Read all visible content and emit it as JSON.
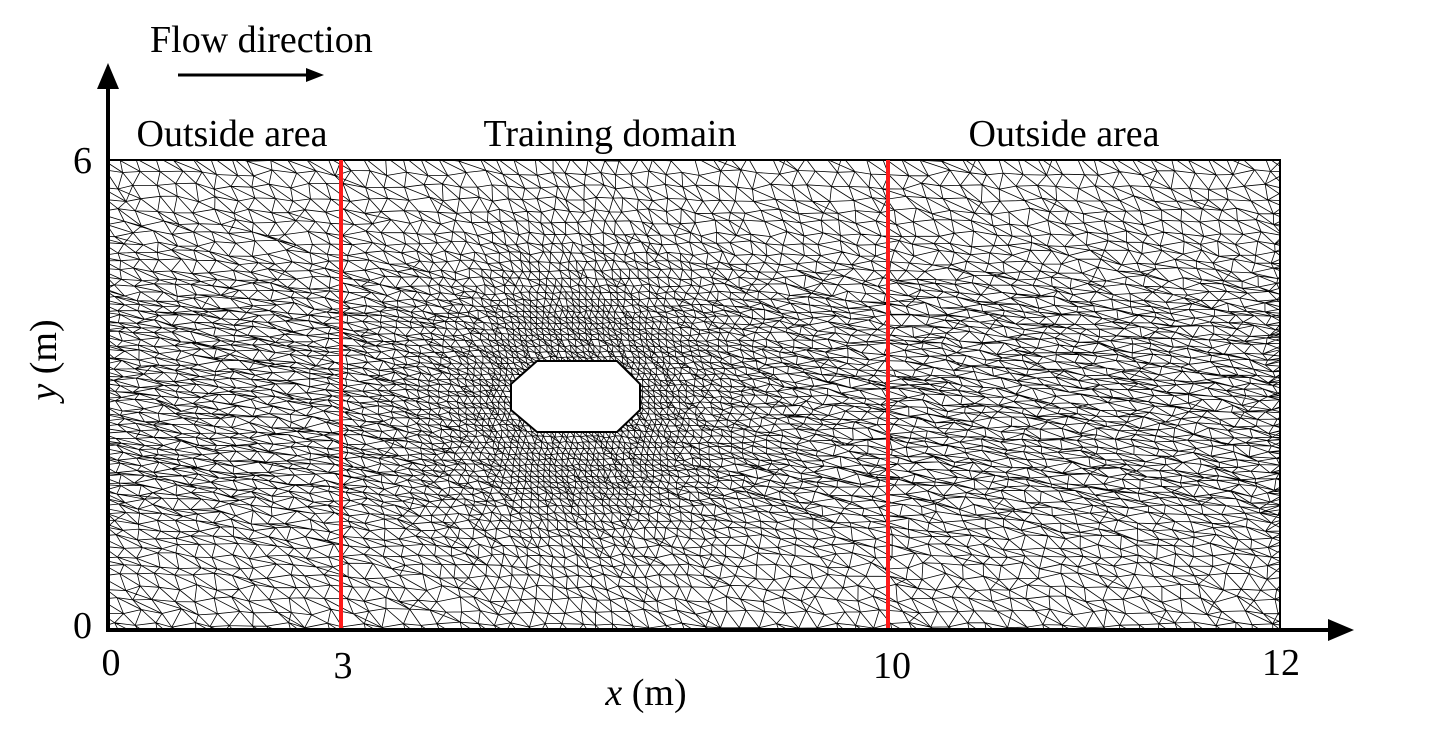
{
  "diagram": {
    "flow_label": "Flow direction",
    "regions": [
      {
        "label": "Outside area",
        "x_start": 0,
        "x_end": 3
      },
      {
        "label": "Training domain",
        "x_start": 3,
        "x_end": 10
      },
      {
        "label": "Outside area",
        "x_start": 10,
        "x_end": 12
      }
    ],
    "x_axis": {
      "var": "x",
      "unit": " (m)",
      "ticks": [
        "0",
        "3",
        "10",
        "12"
      ],
      "range": [
        0,
        12
      ]
    },
    "y_axis": {
      "var": "y",
      "unit": " (m)",
      "ticks": [
        "6",
        "0"
      ],
      "range": [
        0,
        6
      ]
    },
    "boundary_lines_x": [
      3,
      10
    ],
    "obstacle": {
      "shape": "octagon"
    },
    "colors": {
      "mesh": "#000000",
      "boundary": "#ff1a1a",
      "axis": "#000000",
      "obstacle_fill": "#ffffff"
    }
  }
}
